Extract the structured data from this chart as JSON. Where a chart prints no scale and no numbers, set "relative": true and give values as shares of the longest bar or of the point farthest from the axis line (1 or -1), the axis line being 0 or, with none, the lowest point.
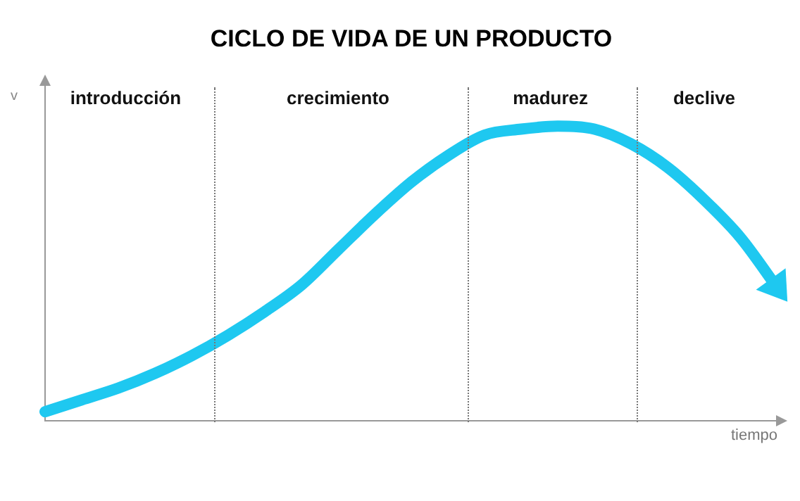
{
  "chart_data": {
    "type": "line",
    "title": "CICLO DE VIDA DE UN PRODUCTO",
    "xlabel": "tiempo",
    "ylabel": "v",
    "relative": true,
    "legend": false,
    "grid": false,
    "marker": "none",
    "line_style": "solid",
    "categories": [
      null,
      null,
      null,
      null,
      null,
      null,
      null,
      null,
      null,
      null,
      null,
      null,
      null,
      null,
      null,
      null,
      null,
      null,
      null,
      null,
      null
    ],
    "series": [
      {
        "color": "#1ec8f0",
        "values": [
          0.03,
          0.07,
          0.11,
          0.16,
          0.22,
          0.29,
          0.37,
          0.46,
          0.58,
          0.7,
          0.81,
          0.9,
          0.97,
          0.99,
          1,
          0.99,
          0.94,
          0.86,
          0.75,
          0.62,
          0.45
        ]
      }
    ],
    "annotations": [
      "introducción",
      "crecimiento",
      "madurez",
      "declive"
    ]
  }
}
